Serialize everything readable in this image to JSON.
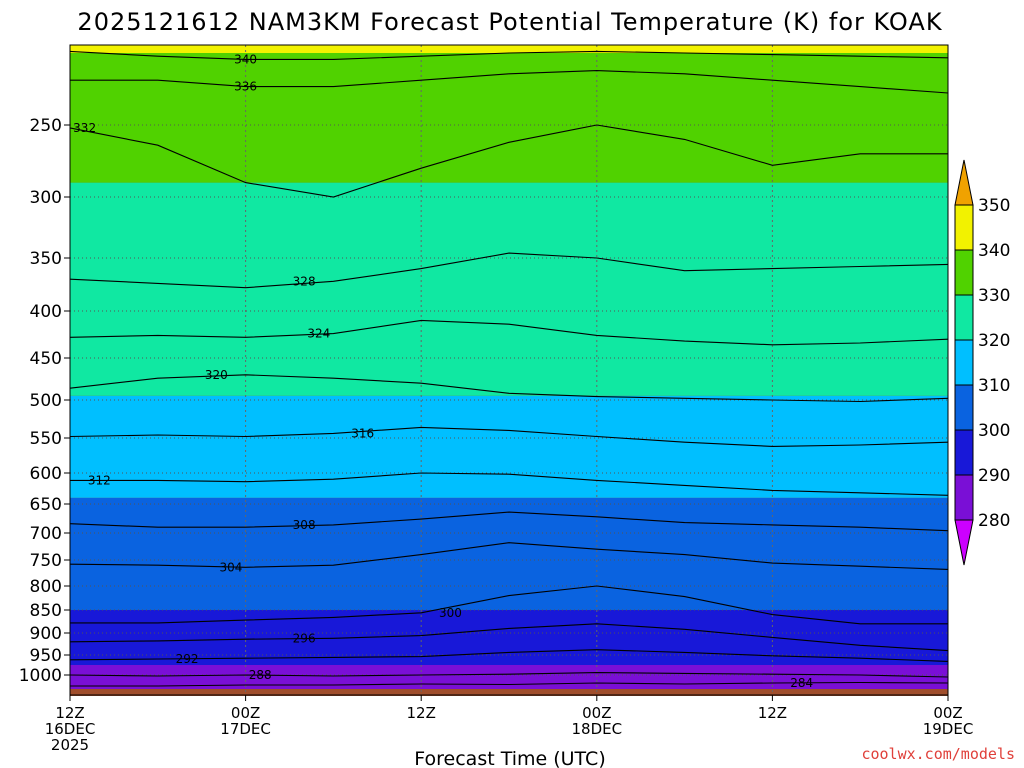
{
  "chart_data": {
    "type": "heatmap",
    "title": "2025121612 NAM3KM Forecast Potential Temperature (K) for KOAK",
    "xlabel": "Forecast Time (UTC)",
    "ylabel": "",
    "credit": "coolwx.com/models",
    "x_ticks": [
      {
        "hour": 0,
        "lines": [
          "12Z",
          "16DEC",
          "2025"
        ]
      },
      {
        "hour": 12,
        "lines": [
          "00Z",
          "17DEC"
        ]
      },
      {
        "hour": 24,
        "lines": [
          "12Z"
        ]
      },
      {
        "hour": 36,
        "lines": [
          "00Z",
          "18DEC"
        ]
      },
      {
        "hour": 48,
        "lines": [
          "12Z"
        ]
      },
      {
        "hour": 60,
        "lines": [
          "00Z",
          "19DEC"
        ]
      }
    ],
    "x_range_hours": [
      0,
      60
    ],
    "y_axis": "pressure (hPa), inverted",
    "y_ticks": [
      250,
      300,
      350,
      400,
      450,
      500,
      550,
      600,
      650,
      700,
      750,
      800,
      850,
      900,
      950,
      1000
    ],
    "y_range": [
      200,
      1040
    ],
    "colorbar": {
      "levels": [
        280,
        290,
        300,
        310,
        320,
        330,
        340,
        350
      ],
      "colors": [
        "#cc00ff",
        "#7a0fd6",
        "#1818d8",
        "#0a63e0",
        "#00bfff",
        "#10e8a2",
        "#50d200",
        "#f2f200",
        "#f0a200"
      ],
      "extend": "both"
    },
    "fill_bands": [
      {
        "color": "#a04e2c",
        "top": 1040,
        "bottom": 1040
      },
      {
        "color": "#7a0fd6",
        "top": 975,
        "bottom": 1028
      },
      {
        "color": "#1818d8",
        "top": 850,
        "bottom": 975
      },
      {
        "color": "#0a63e0",
        "top": 640,
        "bottom": 850
      },
      {
        "color": "#00bfff",
        "top": 495,
        "bottom": 640
      },
      {
        "color": "#10e8a2",
        "top": 290,
        "bottom": 495
      },
      {
        "color": "#50d200",
        "top": 205,
        "bottom": 290
      },
      {
        "color": "#f2f200",
        "top": 200,
        "bottom": 205
      }
    ],
    "contours": [
      {
        "value": 284,
        "label": "284",
        "label_hour": 50,
        "pressures": [
          1022,
          1022,
          1020,
          1020,
          1018,
          1019,
          1016,
          1018,
          1016,
          1015,
          1016
        ]
      },
      {
        "value": 288,
        "label": "288",
        "label_hour": 13,
        "pressures": [
          1000,
          1002,
          1000,
          1002,
          1000,
          998,
          994,
          996,
          998,
          1000,
          1004
        ]
      },
      {
        "value": 292,
        "label": "292",
        "label_hour": 8,
        "pressures": [
          962,
          960,
          958,
          956,
          954,
          944,
          938,
          944,
          952,
          958,
          966
        ]
      },
      {
        "value": 296,
        "label": "296",
        "label_hour": 16,
        "pressures": [
          920,
          918,
          914,
          912,
          906,
          890,
          880,
          892,
          910,
          928,
          940
        ]
      },
      {
        "value": 300,
        "label": "300",
        "label_hour": 26,
        "pressures": [
          878,
          878,
          872,
          866,
          856,
          820,
          800,
          822,
          860,
          880,
          880
        ]
      },
      {
        "value": 304,
        "label": "304",
        "label_hour": 11,
        "pressures": [
          758,
          760,
          764,
          760,
          740,
          718,
          730,
          740,
          756,
          762,
          768
        ]
      },
      {
        "value": 308,
        "label": "308",
        "label_hour": 16,
        "pressures": [
          684,
          690,
          690,
          686,
          676,
          664,
          672,
          682,
          686,
          690,
          696
        ]
      },
      {
        "value": 312,
        "label": "312",
        "label_hour": 2,
        "pressures": [
          612,
          612,
          614,
          610,
          600,
          602,
          612,
          620,
          628,
          632,
          636
        ]
      },
      {
        "value": 316,
        "label": "316",
        "label_hour": 20,
        "pressures": [
          548,
          546,
          548,
          544,
          536,
          540,
          548,
          556,
          562,
          560,
          556
        ]
      },
      {
        "value": 320,
        "label": "320",
        "label_hour": 10,
        "pressures": [
          486,
          474,
          470,
          474,
          480,
          492,
          496,
          498,
          500,
          502,
          498
        ]
      },
      {
        "value": 324,
        "label": "324",
        "label_hour": 17,
        "pressures": [
          428,
          426,
          428,
          424,
          410,
          414,
          426,
          432,
          436,
          434,
          430
        ]
      },
      {
        "value": 328,
        "label": "328",
        "label_hour": 16,
        "pressures": [
          370,
          374,
          378,
          372,
          360,
          346,
          350,
          362,
          360,
          358,
          356
        ]
      },
      {
        "value": 332,
        "label": "332",
        "label_hour": 1,
        "pressures": [
          252,
          264,
          290,
          300,
          280,
          262,
          250,
          260,
          278,
          270,
          270
        ]
      },
      {
        "value": 336,
        "label": "336",
        "label_hour": 12,
        "pressures": [
          222,
          222,
          226,
          226,
          222,
          218,
          216,
          218,
          222,
          226,
          230
        ]
      },
      {
        "value": 340,
        "label": "340",
        "label_hour": 12,
        "pressures": [
          204,
          207,
          209,
          209,
          207,
          205,
          204,
          205,
          206,
          207,
          208
        ]
      }
    ]
  }
}
